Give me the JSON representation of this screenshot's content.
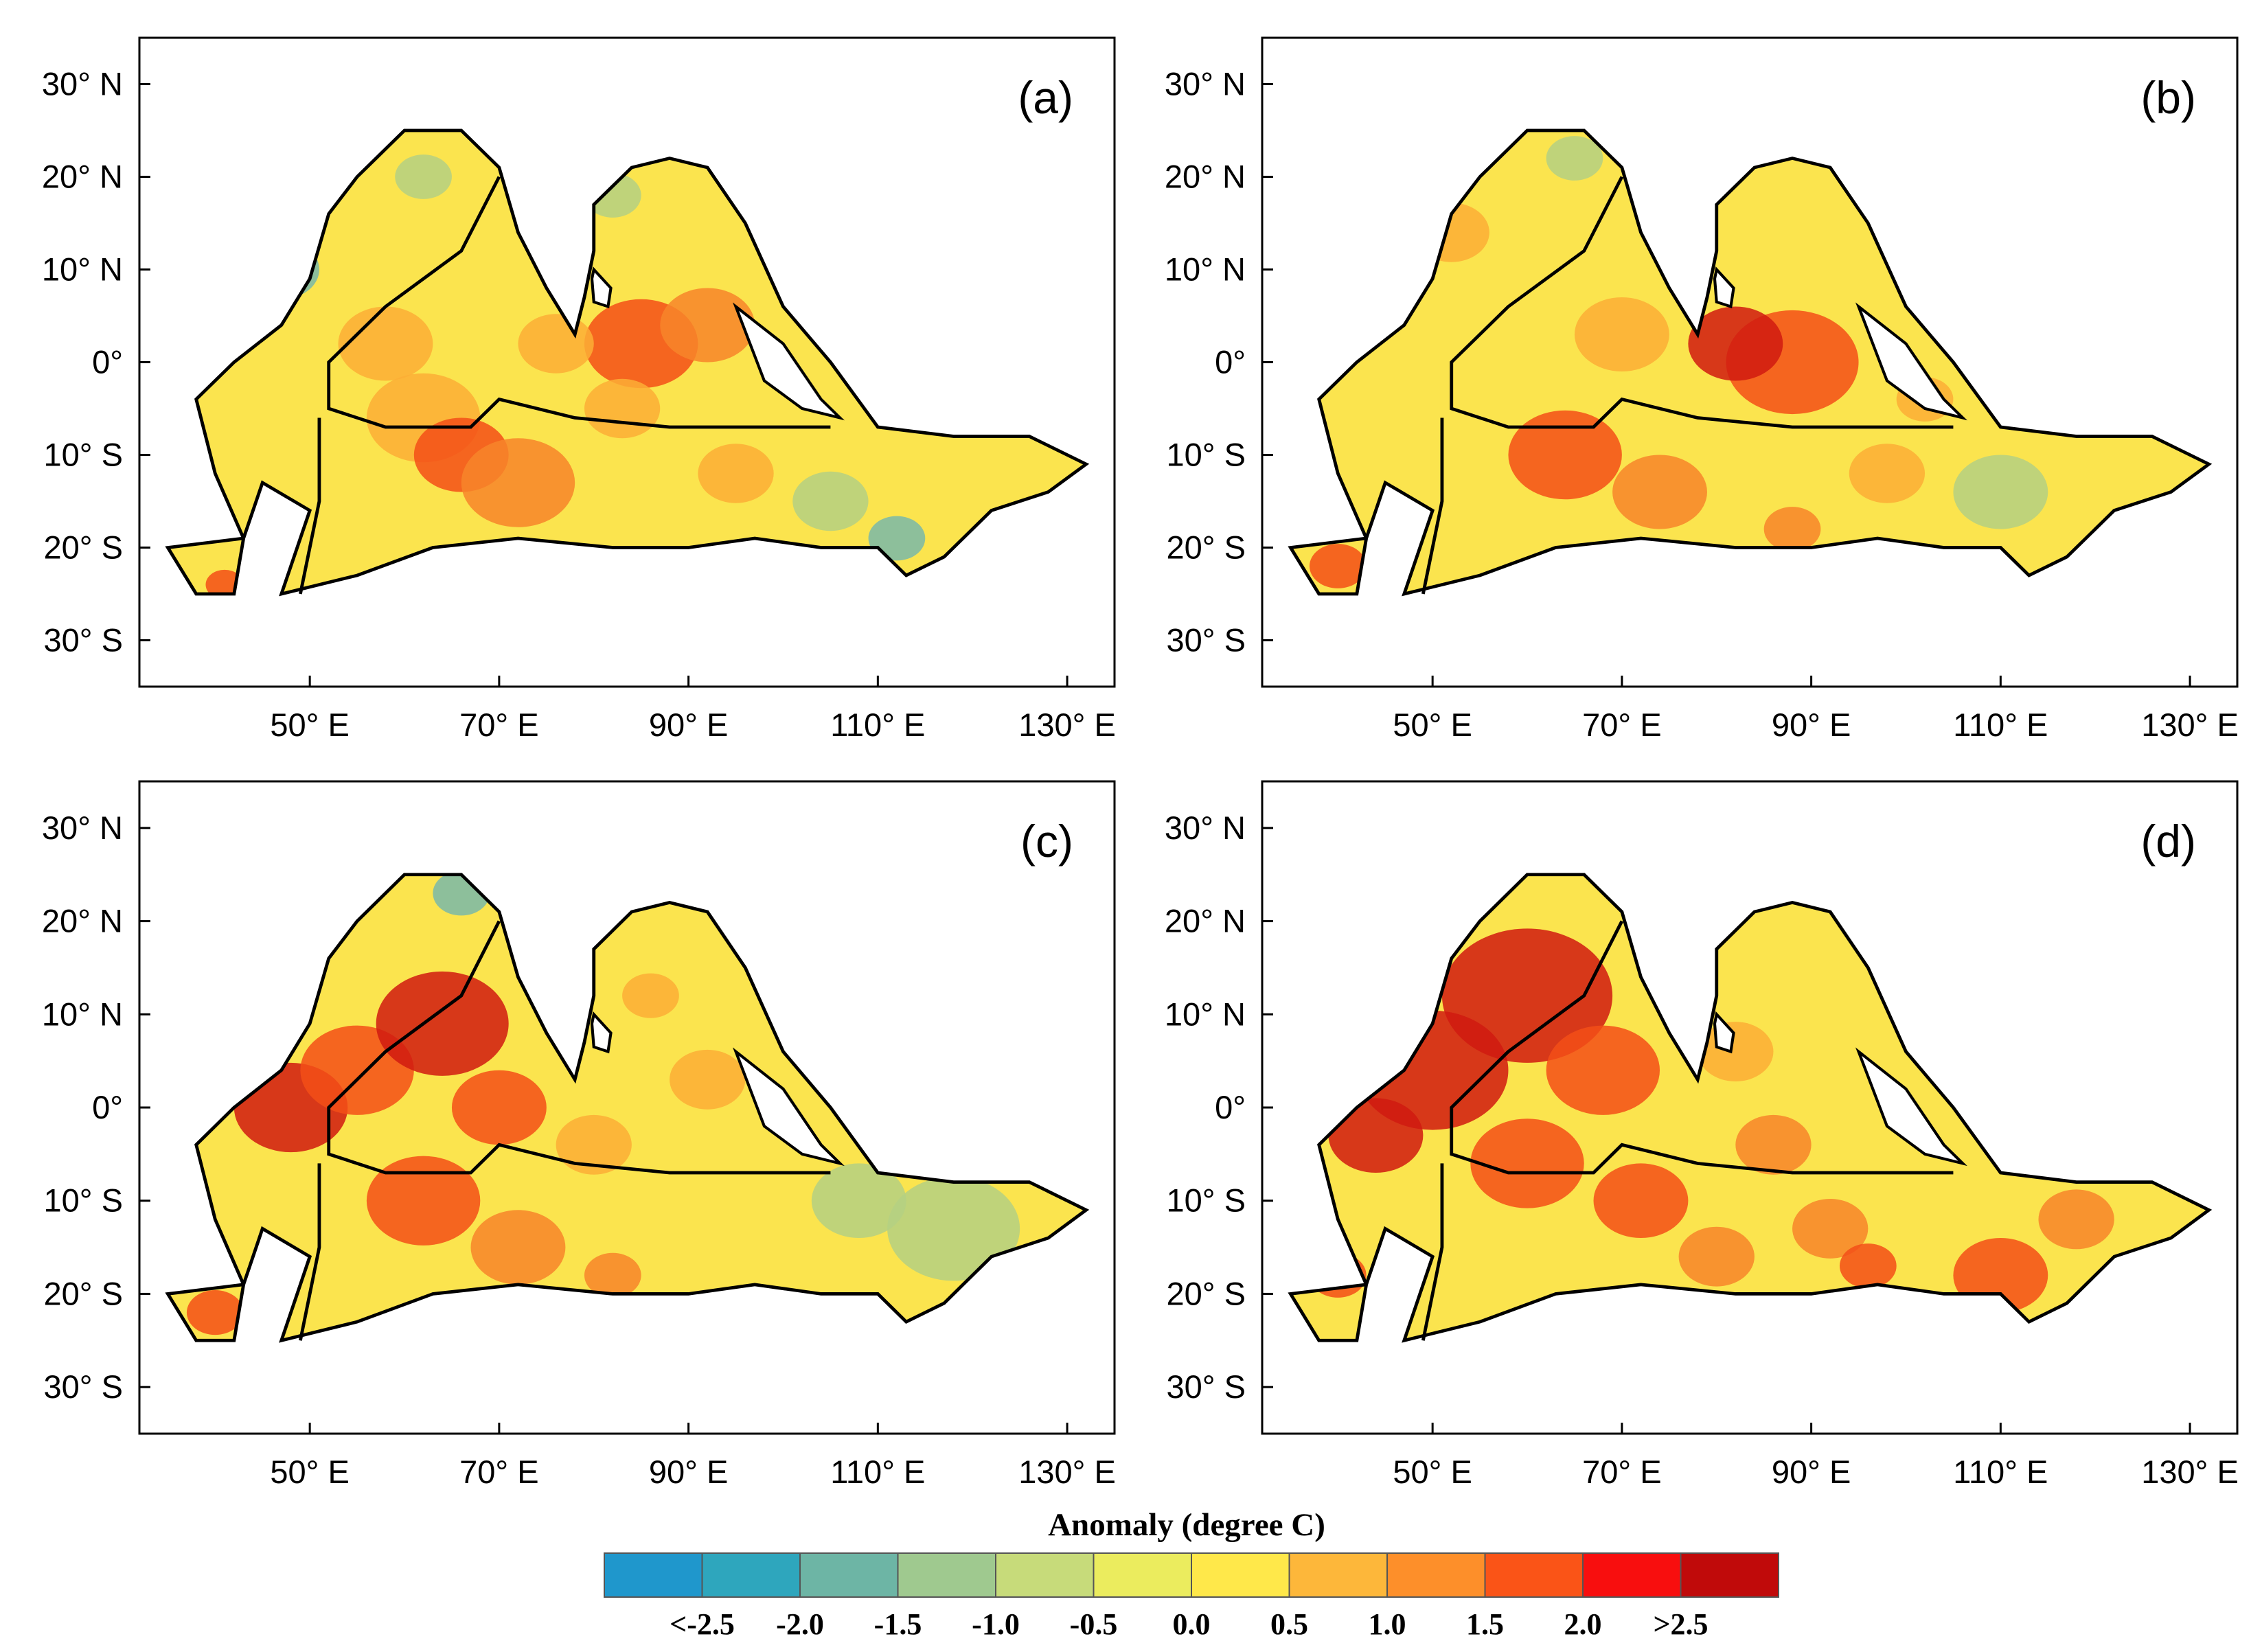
{
  "figure": {
    "panels": [
      {
        "label": "(a)"
      },
      {
        "label": "(b)"
      },
      {
        "label": "(c)"
      },
      {
        "label": "(d)"
      }
    ],
    "lat_ticks": [
      "30° N",
      "20° N",
      "10° N",
      "0°",
      "10° S",
      "20° S",
      "30° S"
    ],
    "lat_values": [
      30,
      20,
      10,
      0,
      -10,
      -20,
      -30
    ],
    "lon_ticks": [
      "50° E",
      "70° E",
      "90° E",
      "110° E",
      "130° E"
    ],
    "lon_values": [
      50,
      70,
      90,
      110,
      130
    ],
    "lat_range": [
      -35,
      35
    ],
    "lon_range": [
      32,
      135
    ]
  },
  "colorbar": {
    "title": "Anomaly (degree C)",
    "labels": [
      "<-2.5",
      "-2.0",
      "-1.5",
      "-1.0",
      "-0.5",
      "0.0",
      "0.5",
      "1.0",
      "1.5",
      "2.0",
      ">2.5"
    ],
    "colors": [
      "#1f97cc",
      "#2ea6bd",
      "#6db5a5",
      "#9fc98f",
      "#c7db7a",
      "#ebec5e",
      "#ffe84a",
      "#fdb73a",
      "#fd8f2a",
      "#fa5417",
      "#f80e0e",
      "#c00a0a"
    ]
  },
  "map_colors": {
    "base_yellow": "#fbe44e",
    "orange": "#fbae36",
    "dark_orange": "#f7852a",
    "red": "#f34f18",
    "deep_red": "#d01a10",
    "green": "#b4d082",
    "teal": "#79b9a9",
    "outline": "#000000"
  }
}
